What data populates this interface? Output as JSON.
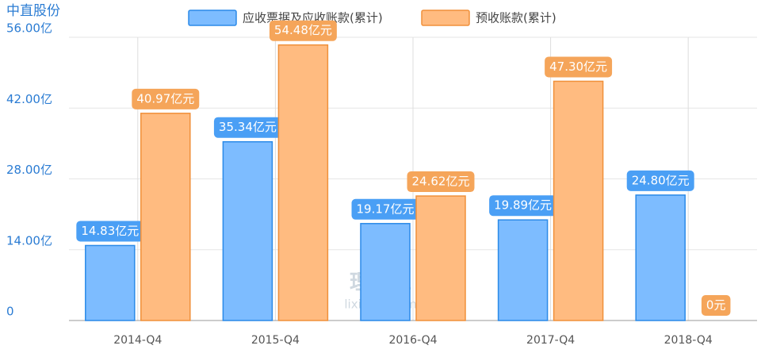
{
  "chart_data": {
    "type": "bar",
    "title": "中直股份",
    "categories": [
      "2014-Q4",
      "2015-Q4",
      "2016-Q4",
      "2017-Q4",
      "2018-Q4"
    ],
    "series": [
      {
        "name": "应收票据及应收账款(累计)",
        "color": "#7dbcff",
        "edgecolor": "#2b8ae8",
        "label_color": "#4a9ff5",
        "values": [
          14.83,
          35.34,
          19.17,
          19.89,
          24.8
        ],
        "value_labels": [
          "14.83亿元",
          "35.34亿元",
          "19.17亿元",
          "19.89亿元",
          "24.80亿元"
        ]
      },
      {
        "name": "预收账款(累计)",
        "color": "#ffbb80",
        "edgecolor": "#f0903a",
        "label_color": "#f5a55a",
        "values": [
          40.97,
          54.48,
          24.62,
          47.3,
          0
        ],
        "value_labels": [
          "40.97亿元",
          "54.48亿元",
          "24.62亿元",
          "47.30亿元",
          "0元"
        ]
      }
    ],
    "ylim": [
      0,
      56
    ],
    "yticks": [
      0,
      {
        "value": 14,
        "label": "14.00亿"
      },
      {
        "value": 28,
        "label": "28.00亿"
      },
      {
        "value": 42,
        "label": "42.00亿"
      },
      {
        "value": 56,
        "label": "56.00亿"
      }
    ],
    "grid": true,
    "watermark": [
      "理杏仁",
      "lixinger.com"
    ]
  }
}
